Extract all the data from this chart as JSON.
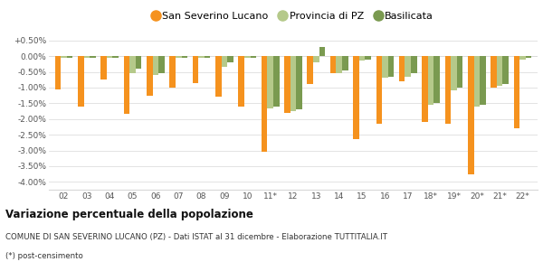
{
  "categories": [
    "02",
    "03",
    "04",
    "05",
    "06",
    "07",
    "08",
    "09",
    "10",
    "11*",
    "12",
    "13",
    "14",
    "15",
    "16",
    "17",
    "18*",
    "19*",
    "20*",
    "21*",
    "22*"
  ],
  "san_severino": [
    -1.05,
    -1.6,
    -0.75,
    -1.85,
    -1.25,
    -1.0,
    -0.85,
    -1.3,
    -1.6,
    -3.05,
    -1.8,
    -0.9,
    -0.55,
    -2.65,
    -2.15,
    -0.8,
    -2.1,
    -2.15,
    -3.75,
    -1.0,
    -2.3
  ],
  "provincia_pz": [
    -0.05,
    -0.05,
    -0.05,
    -0.55,
    -0.6,
    -0.05,
    -0.05,
    -0.35,
    -0.05,
    -1.65,
    -1.75,
    -0.2,
    -0.55,
    -0.15,
    -0.7,
    -0.65,
    -1.55,
    -1.1,
    -1.6,
    -0.95,
    -0.1
  ],
  "basilicata": [
    -0.05,
    -0.05,
    -0.05,
    -0.4,
    -0.55,
    -0.05,
    -0.05,
    -0.2,
    -0.05,
    -1.6,
    -1.7,
    0.3,
    -0.45,
    -0.1,
    -0.65,
    -0.55,
    -1.5,
    -1.0,
    -1.55,
    -0.9,
    -0.05
  ],
  "color_san_severino": "#f5921e",
  "color_provincia": "#b5c98a",
  "color_basilicata": "#7a9a50",
  "title": "Variazione percentuale della popolazione",
  "subtitle": "COMUNE DI SAN SEVERINO LUCANO (PZ) - Dati ISTAT al 31 dicembre - Elaborazione TUTTITALIA.IT",
  "footnote": "(*) post-censimento",
  "legend_labels": [
    "San Severino Lucano",
    "Provincia di PZ",
    "Basilicata"
  ],
  "ylim": [
    -4.25,
    0.75
  ],
  "yticks": [
    0.5,
    0.0,
    -0.5,
    -1.0,
    -1.5,
    -2.0,
    -2.5,
    -3.0,
    -3.5,
    -4.0
  ],
  "ytick_labels": [
    "+0.50%",
    "0.00%",
    "-0.50%",
    "-1.00%",
    "-1.50%",
    "-2.00%",
    "-2.50%",
    "-3.00%",
    "-3.50%",
    "-4.00%"
  ],
  "bg_color": "#ffffff",
  "grid_color": "#d8d8d8",
  "bar_width": 0.26
}
